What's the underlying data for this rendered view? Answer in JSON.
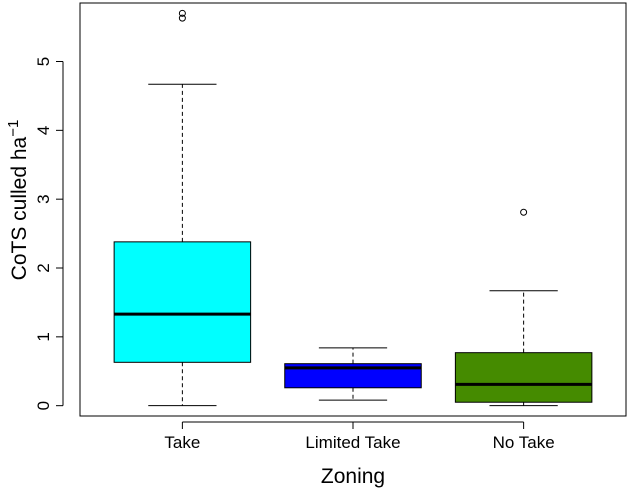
{
  "chart_data": {
    "type": "box",
    "xlabel": "Zoning",
    "ylabel": "CoTS culled ha",
    "ylabel_superscript": "−1",
    "ylim": [
      -0.15,
      5.85
    ],
    "yticks": [
      0,
      1,
      2,
      3,
      4,
      5
    ],
    "categories": [
      "Take",
      "Limited Take",
      "No Take"
    ],
    "boxes": [
      {
        "category": "Take",
        "min": 0.0,
        "q1": 0.63,
        "median": 1.33,
        "q3": 2.38,
        "max": 4.67,
        "outliers": [
          5.63,
          5.7
        ],
        "color": "#00ffff"
      },
      {
        "category": "Limited Take",
        "min": 0.08,
        "q1": 0.26,
        "median": 0.55,
        "q3": 0.61,
        "max": 0.84,
        "outliers": [],
        "color": "#0000ff"
      },
      {
        "category": "No Take",
        "min": 0.0,
        "q1": 0.05,
        "median": 0.31,
        "q3": 0.77,
        "max": 1.67,
        "outliers": [
          2.81
        ],
        "color": "#458b00"
      }
    ],
    "grid": false,
    "legend": "none"
  }
}
